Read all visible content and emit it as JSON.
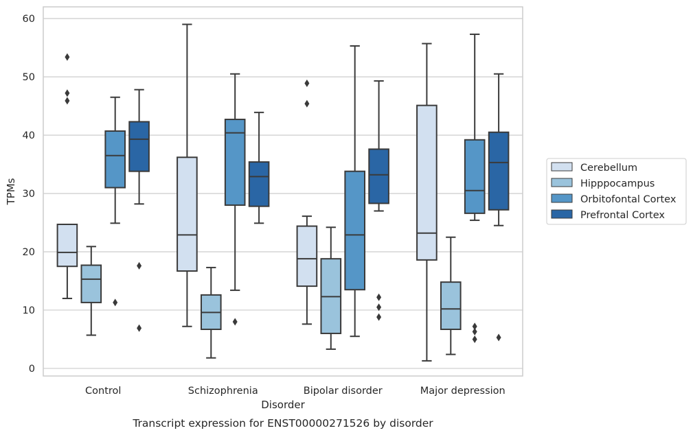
{
  "chart_data": {
    "type": "boxplot",
    "caption": "Transcript expression for ENST00000271526 by disorder",
    "xlabel": "Disorder",
    "ylabel": "TPMs",
    "ylim": [
      -1.3,
      62
    ],
    "yticks": [
      0,
      10,
      20,
      30,
      40,
      50,
      60
    ],
    "grid": "horizontal",
    "legend_position": "right",
    "categories": [
      "Control",
      "Schizophrenia",
      "Bipolar disorder",
      "Major depression"
    ],
    "series": [
      {
        "name": "Cerebellum",
        "color": "#d2e0f0",
        "boxes": [
          {
            "whislo": 12.0,
            "q1": 17.5,
            "med": 19.9,
            "q3": 24.7,
            "whishi": 24.7,
            "fliers": [
              53.4,
              47.2,
              45.9
            ]
          },
          {
            "whislo": 7.2,
            "q1": 16.7,
            "med": 22.9,
            "q3": 36.2,
            "whishi": 59.0,
            "fliers": []
          },
          {
            "whislo": 7.6,
            "q1": 14.1,
            "med": 18.8,
            "q3": 24.4,
            "whishi": 26.1,
            "fliers": [
              48.9,
              45.4
            ]
          },
          {
            "whislo": 1.3,
            "q1": 18.6,
            "med": 23.2,
            "q3": 45.1,
            "whishi": 55.7,
            "fliers": []
          }
        ]
      },
      {
        "name": "Hipppocampus",
        "color": "#9ac3dc",
        "boxes": [
          {
            "whislo": 5.7,
            "q1": 11.3,
            "med": 15.3,
            "q3": 17.7,
            "whishi": 20.9,
            "fliers": []
          },
          {
            "whislo": 1.8,
            "q1": 6.7,
            "med": 9.6,
            "q3": 12.6,
            "whishi": 17.3,
            "fliers": []
          },
          {
            "whislo": 3.3,
            "q1": 6.0,
            "med": 12.3,
            "q3": 18.8,
            "whishi": 24.2,
            "fliers": []
          },
          {
            "whislo": 2.4,
            "q1": 6.7,
            "med": 10.2,
            "q3": 14.8,
            "whishi": 22.5,
            "fliers": []
          }
        ]
      },
      {
        "name": "Orbitofontal Cortex",
        "color": "#5596c7",
        "boxes": [
          {
            "whislo": 24.9,
            "q1": 31.0,
            "med": 36.5,
            "q3": 40.7,
            "whishi": 46.5,
            "fliers": [
              11.3
            ]
          },
          {
            "whislo": 13.4,
            "q1": 28.0,
            "med": 40.4,
            "q3": 42.7,
            "whishi": 50.5,
            "fliers": [
              8.0
            ]
          },
          {
            "whislo": 5.5,
            "q1": 13.5,
            "med": 22.9,
            "q3": 33.8,
            "whishi": 55.3,
            "fliers": []
          },
          {
            "whislo": 25.4,
            "q1": 26.6,
            "med": 30.5,
            "q3": 39.2,
            "whishi": 57.3,
            "fliers": [
              7.2,
              6.3,
              5.0
            ]
          }
        ]
      },
      {
        "name": "Prefrontal Cortex",
        "color": "#2a66a5",
        "boxes": [
          {
            "whislo": 28.2,
            "q1": 33.8,
            "med": 39.3,
            "q3": 42.3,
            "whishi": 47.8,
            "fliers": [
              17.6,
              6.9
            ]
          },
          {
            "whislo": 24.9,
            "q1": 27.8,
            "med": 32.9,
            "q3": 35.4,
            "whishi": 43.9,
            "fliers": []
          },
          {
            "whislo": 27.0,
            "q1": 28.3,
            "med": 33.2,
            "q3": 37.6,
            "whishi": 49.3,
            "fliers": [
              12.2,
              10.5,
              8.8
            ]
          },
          {
            "whislo": 24.5,
            "q1": 27.2,
            "med": 35.3,
            "q3": 40.5,
            "whishi": 50.5,
            "fliers": [
              5.3
            ]
          }
        ]
      }
    ]
  }
}
